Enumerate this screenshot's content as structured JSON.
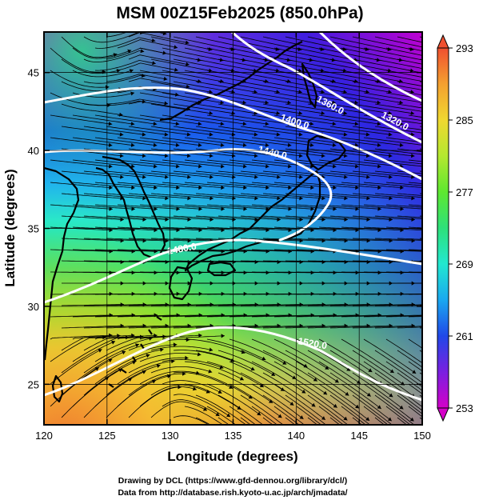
{
  "title": "MSM 00Z15Feb2025 (850.0hPa)",
  "xlabel": "Longitude (degrees)",
  "ylabel": "Latitude  (degrees)",
  "credits": {
    "line1": "Drawing by DCL (https://www.gfd-dennou.org/library/dcl/)",
    "line2": "Data from http://database.rish.kyoto-u.ac.jp/arch/jmadata/"
  },
  "chart_data": {
    "type": "heatmap",
    "xlim": [
      120,
      150
    ],
    "ylim": [
      22.4,
      47.6
    ],
    "x_ticks": [
      "120",
      "125",
      "130",
      "135",
      "140",
      "145",
      "150"
    ],
    "y_ticks": [
      "25",
      "30",
      "35",
      "40",
      "45"
    ],
    "grid": true,
    "colorbar": {
      "min": 253,
      "max": 293,
      "tick_labels": [
        "293",
        "285",
        "277",
        "269",
        "261",
        "253"
      ],
      "colors": [
        "#d400c8",
        "#7a20e0",
        "#2048e8",
        "#1aa8f0",
        "#22e8d0",
        "#2ee07a",
        "#5ee830",
        "#b4e830",
        "#f0d830",
        "#f4a030",
        "#f05030"
      ]
    },
    "contour_labels": [
      "1320.0",
      "1360.0",
      "1400.0",
      "1440.0",
      "1480.0",
      "1520.0"
    ]
  }
}
